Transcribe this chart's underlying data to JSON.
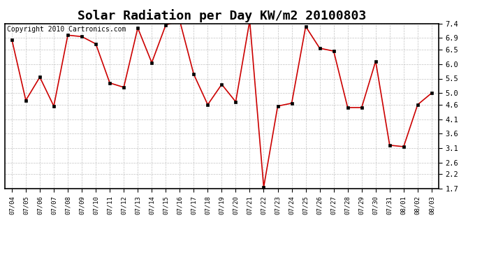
{
  "title": "Solar Radiation per Day KW/m2 20100803",
  "copyright": "Copyright 2010 Cartronics.com",
  "dates": [
    "07/04",
    "07/05",
    "07/06",
    "07/07",
    "07/08",
    "07/09",
    "07/10",
    "07/11",
    "07/12",
    "07/13",
    "07/14",
    "07/15",
    "07/16",
    "07/17",
    "07/18",
    "07/19",
    "07/20",
    "07/21",
    "07/22",
    "07/23",
    "07/24",
    "07/25",
    "07/26",
    "07/27",
    "07/28",
    "07/29",
    "07/30",
    "07/31",
    "08/01",
    "08/02",
    "08/03"
  ],
  "values": [
    6.85,
    4.75,
    5.55,
    4.55,
    7.0,
    6.95,
    6.7,
    5.35,
    5.2,
    7.25,
    6.05,
    7.35,
    7.5,
    5.65,
    4.6,
    5.3,
    4.7,
    7.5,
    1.75,
    4.55,
    4.65,
    7.3,
    6.55,
    6.45,
    4.5,
    4.5,
    6.1,
    3.2,
    3.15,
    4.6,
    5.0
  ],
  "line_color": "#cc0000",
  "marker_color": "#000000",
  "bg_color": "#ffffff",
  "grid_color": "#bbbbbb",
  "ylim_min": 1.7,
  "ylim_max": 7.4,
  "yticks": [
    1.7,
    2.2,
    2.6,
    3.1,
    3.6,
    4.1,
    4.6,
    5.0,
    5.5,
    6.0,
    6.5,
    6.9,
    7.4
  ],
  "title_fontsize": 13,
  "copyright_fontsize": 7
}
